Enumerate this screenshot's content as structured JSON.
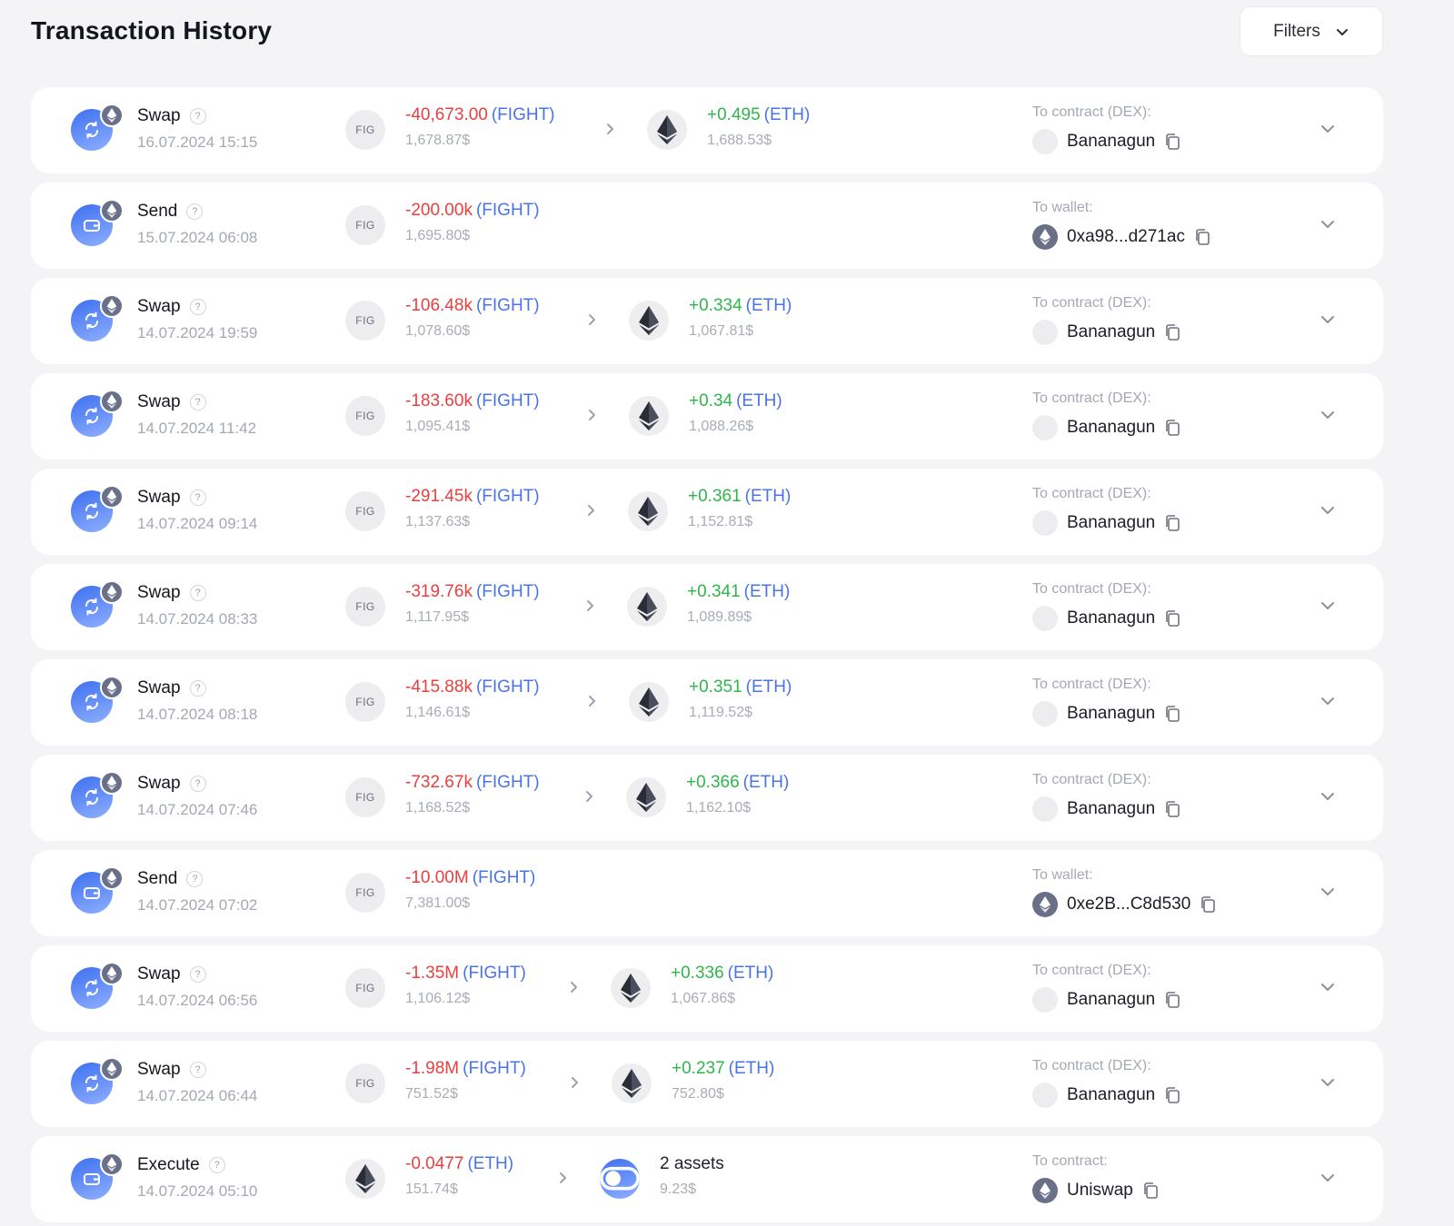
{
  "header": {
    "title": "Transaction History",
    "filters_label": "Filters"
  },
  "rows": [
    {
      "type": "Swap",
      "icon": "swap-icon",
      "date": "16.07.2024 15:15",
      "from": {
        "asset": "FIG",
        "amount": "-40,673.00",
        "symbol": "(FIGHT)",
        "usd": "1,678.87$"
      },
      "to": {
        "asset": "eth",
        "amount": "+0.495",
        "symbol": "(ETH)",
        "usd": "1,688.53$"
      },
      "dest_label": "To contract (DEX):",
      "dest": "Bananagun",
      "dest_kind": "contract"
    },
    {
      "type": "Send",
      "icon": "wallet-icon",
      "date": "15.07.2024 06:08",
      "from": {
        "asset": "FIG",
        "amount": "-200.00k",
        "symbol": "(FIGHT)",
        "usd": "1,695.80$"
      },
      "dest_label": "To wallet:",
      "dest": "0xa98...d271ac",
      "dest_kind": "wallet"
    },
    {
      "type": "Swap",
      "icon": "swap-icon",
      "date": "14.07.2024 19:59",
      "from": {
        "asset": "FIG",
        "amount": "-106.48k",
        "symbol": "(FIGHT)",
        "usd": "1,078.60$"
      },
      "to": {
        "asset": "eth",
        "amount": "+0.334",
        "symbol": "(ETH)",
        "usd": "1,067.81$"
      },
      "dest_label": "To contract (DEX):",
      "dest": "Bananagun",
      "dest_kind": "contract"
    },
    {
      "type": "Swap",
      "icon": "swap-icon",
      "date": "14.07.2024 11:42",
      "from": {
        "asset": "FIG",
        "amount": "-183.60k",
        "symbol": "(FIGHT)",
        "usd": "1,095.41$"
      },
      "to": {
        "asset": "eth",
        "amount": "+0.34",
        "symbol": "(ETH)",
        "usd": "1,088.26$"
      },
      "dest_label": "To contract (DEX):",
      "dest": "Bananagun",
      "dest_kind": "contract"
    },
    {
      "type": "Swap",
      "icon": "swap-icon",
      "date": "14.07.2024 09:14",
      "from": {
        "asset": "FIG",
        "amount": "-291.45k",
        "symbol": "(FIGHT)",
        "usd": "1,137.63$"
      },
      "to": {
        "asset": "eth",
        "amount": "+0.361",
        "symbol": "(ETH)",
        "usd": "1,152.81$"
      },
      "dest_label": "To contract (DEX):",
      "dest": "Bananagun",
      "dest_kind": "contract"
    },
    {
      "type": "Swap",
      "icon": "swap-icon",
      "date": "14.07.2024 08:33",
      "from": {
        "asset": "FIG",
        "amount": "-319.76k",
        "symbol": "(FIGHT)",
        "usd": "1,117.95$"
      },
      "to": {
        "asset": "eth",
        "amount": "+0.341",
        "symbol": "(ETH)",
        "usd": "1,089.89$"
      },
      "dest_label": "To contract (DEX):",
      "dest": "Bananagun",
      "dest_kind": "contract"
    },
    {
      "type": "Swap",
      "icon": "swap-icon",
      "date": "14.07.2024 08:18",
      "from": {
        "asset": "FIG",
        "amount": "-415.88k",
        "symbol": "(FIGHT)",
        "usd": "1,146.61$"
      },
      "to": {
        "asset": "eth",
        "amount": "+0.351",
        "symbol": "(ETH)",
        "usd": "1,119.52$"
      },
      "dest_label": "To contract (DEX):",
      "dest": "Bananagun",
      "dest_kind": "contract"
    },
    {
      "type": "Swap",
      "icon": "swap-icon",
      "date": "14.07.2024 07:46",
      "from": {
        "asset": "FIG",
        "amount": "-732.67k",
        "symbol": "(FIGHT)",
        "usd": "1,168.52$"
      },
      "to": {
        "asset": "eth",
        "amount": "+0.366",
        "symbol": "(ETH)",
        "usd": "1,162.10$"
      },
      "dest_label": "To contract (DEX):",
      "dest": "Bananagun",
      "dest_kind": "contract"
    },
    {
      "type": "Send",
      "icon": "wallet-icon",
      "date": "14.07.2024 07:02",
      "from": {
        "asset": "FIG",
        "amount": "-10.00M",
        "symbol": "(FIGHT)",
        "usd": "7,381.00$"
      },
      "dest_label": "To wallet:",
      "dest": "0xe2B...C8d530",
      "dest_kind": "wallet"
    },
    {
      "type": "Swap",
      "icon": "swap-icon",
      "date": "14.07.2024 06:56",
      "from": {
        "asset": "FIG",
        "amount": "-1.35M",
        "symbol": "(FIGHT)",
        "usd": "1,106.12$"
      },
      "to": {
        "asset": "eth",
        "amount": "+0.336",
        "symbol": "(ETH)",
        "usd": "1,067.86$"
      },
      "dest_label": "To contract (DEX):",
      "dest": "Bananagun",
      "dest_kind": "contract"
    },
    {
      "type": "Swap",
      "icon": "swap-icon",
      "date": "14.07.2024 06:44",
      "from": {
        "asset": "FIG",
        "amount": "-1.98M",
        "symbol": "(FIGHT)",
        "usd": "751.52$"
      },
      "to": {
        "asset": "eth",
        "amount": "+0.237",
        "symbol": "(ETH)",
        "usd": "752.80$"
      },
      "dest_label": "To contract (DEX):",
      "dest": "Bananagun",
      "dest_kind": "contract"
    },
    {
      "type": "Execute",
      "icon": "wallet-icon",
      "date": "14.07.2024 05:10",
      "from": {
        "asset": "eth",
        "amount": "-0.0477",
        "symbol": "(ETH)",
        "usd": "151.74$"
      },
      "to": {
        "asset": "multi",
        "amount": "2 assets",
        "symbol": "",
        "usd": "9.23$"
      },
      "dest_label": "To contract:",
      "dest": "Uniswap",
      "dest_kind": "wallet"
    }
  ],
  "colors": {
    "negative": "#ea3f3f",
    "positive": "#2fb64b",
    "token_symbol": "#4a74e6",
    "accent": "#3d6ff0"
  }
}
